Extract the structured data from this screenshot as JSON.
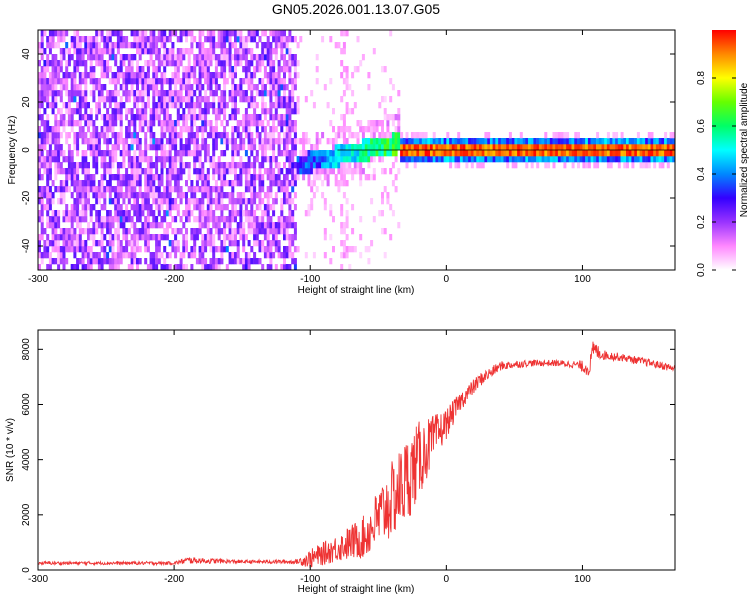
{
  "title": "GN05.2026.001.13.07.G05",
  "colors": {
    "snr_line": "#ee3333",
    "axis": "#000000",
    "noise_purple": "#7f3dff",
    "ridge_red": "#ff1a1a"
  },
  "chart_data": [
    {
      "type": "heatmap",
      "name": "spectrogram",
      "title": "GN05.2026.001.13.07.G05",
      "xlabel": "Height of straight line (km)",
      "ylabel": "Frequency (Hz)",
      "xlim": [
        -300,
        168
      ],
      "ylim": [
        -50,
        50
      ],
      "x_ticks": [
        "-300",
        "-200",
        "-100",
        "0",
        "100"
      ],
      "y_ticks": [
        "-40",
        "-20",
        "0",
        "20",
        "40"
      ],
      "x_tick_values": [
        -300,
        -200,
        -100,
        0,
        100
      ],
      "y_tick_values": [
        -40,
        -20,
        0,
        20,
        40
      ],
      "colorbar": {
        "label": "Normalized spectral amplitude",
        "range": [
          0,
          1
        ],
        "ticks": [
          "0.0",
          "0.2",
          "0.4",
          "0.6",
          "0.8"
        ],
        "tick_values": [
          0,
          0.2,
          0.4,
          0.6,
          0.8
        ],
        "stops": [
          "#ffffff",
          "#ff88ff",
          "#9933ff",
          "#3300ff",
          "#0088ff",
          "#00ffff",
          "#00ff66",
          "#66ff00",
          "#ffff00",
          "#ff8800",
          "#ff0000"
        ]
      },
      "noise_region_x": [
        -300,
        -110
      ],
      "transition_x": [
        -110,
        -35
      ],
      "ridge": {
        "x": [
          -110,
          168
        ],
        "center_hz": 0,
        "amplitude_max": 1.0
      }
    },
    {
      "type": "line",
      "name": "snr",
      "xlabel": "Height of straight line (km)",
      "ylabel": "SNR (10 * v/v)",
      "xlim": [
        -300,
        168
      ],
      "ylim": [
        0,
        8700
      ],
      "x_ticks": [
        "-300",
        "-200",
        "-100",
        "0",
        "100"
      ],
      "y_ticks": [
        "0",
        "2000",
        "4000",
        "6000",
        "8000"
      ],
      "x_tick_values": [
        -300,
        -200,
        -100,
        0,
        100
      ],
      "y_tick_values": [
        0,
        2000,
        4000,
        6000,
        8000
      ],
      "series": [
        {
          "name": "SNR",
          "x": [
            -300,
            -200,
            -190,
            -150,
            -110,
            -100,
            -80,
            -60,
            -45,
            -30,
            -20,
            -10,
            0,
            10,
            25,
            40,
            60,
            80,
            95,
            105,
            108,
            115,
            130,
            150,
            168
          ],
          "y": [
            250,
            250,
            350,
            300,
            300,
            400,
            800,
            1200,
            2200,
            3200,
            4000,
            4700,
            5300,
            6100,
            6900,
            7400,
            7500,
            7500,
            7450,
            7300,
            8000,
            7800,
            7700,
            7500,
            7300
          ],
          "noise": [
            60,
            60,
            120,
            60,
            80,
            350,
            500,
            800,
            1300,
            1600,
            1400,
            900,
            550,
            350,
            250,
            170,
            120,
            120,
            130,
            300,
            350,
            180,
            140,
            140,
            140
          ]
        }
      ]
    }
  ]
}
